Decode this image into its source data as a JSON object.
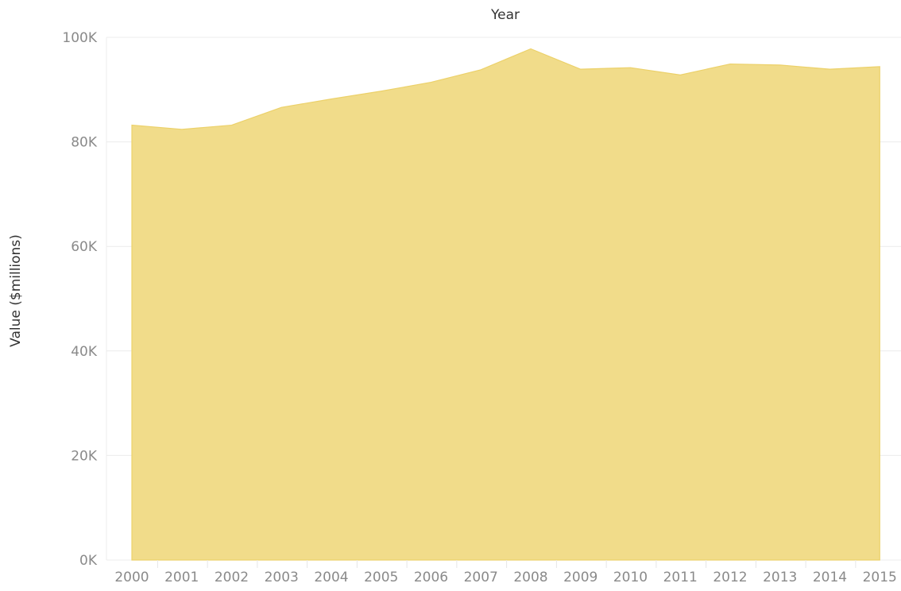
{
  "chart_data": {
    "type": "area",
    "title": "",
    "xlabel": "Year",
    "ylabel": "Value ($millions)",
    "x": [
      "2000",
      "2001",
      "2002",
      "2003",
      "2004",
      "2005",
      "2006",
      "2007",
      "2008",
      "2009",
      "2010",
      "2011",
      "2012",
      "2013",
      "2014",
      "2015"
    ],
    "series": [
      {
        "values": [
          83200,
          82400,
          83200,
          86600,
          88200,
          89700,
          91400,
          93800,
          97800,
          93900,
          94200,
          92800,
          94900,
          94700,
          93900,
          94400
        ]
      }
    ],
    "ylim": [
      0,
      100000
    ],
    "yticks": [
      0,
      20000,
      40000,
      60000,
      80000,
      100000
    ],
    "ytick_labels": [
      "0K",
      "20K",
      "40K",
      "60K",
      "80K",
      "100K"
    ],
    "x_axis_title_position": "top",
    "grid": true,
    "legend": "none",
    "colors": {
      "area_fill": "#f1dc8a",
      "area_stroke": "#ecd16a"
    }
  }
}
